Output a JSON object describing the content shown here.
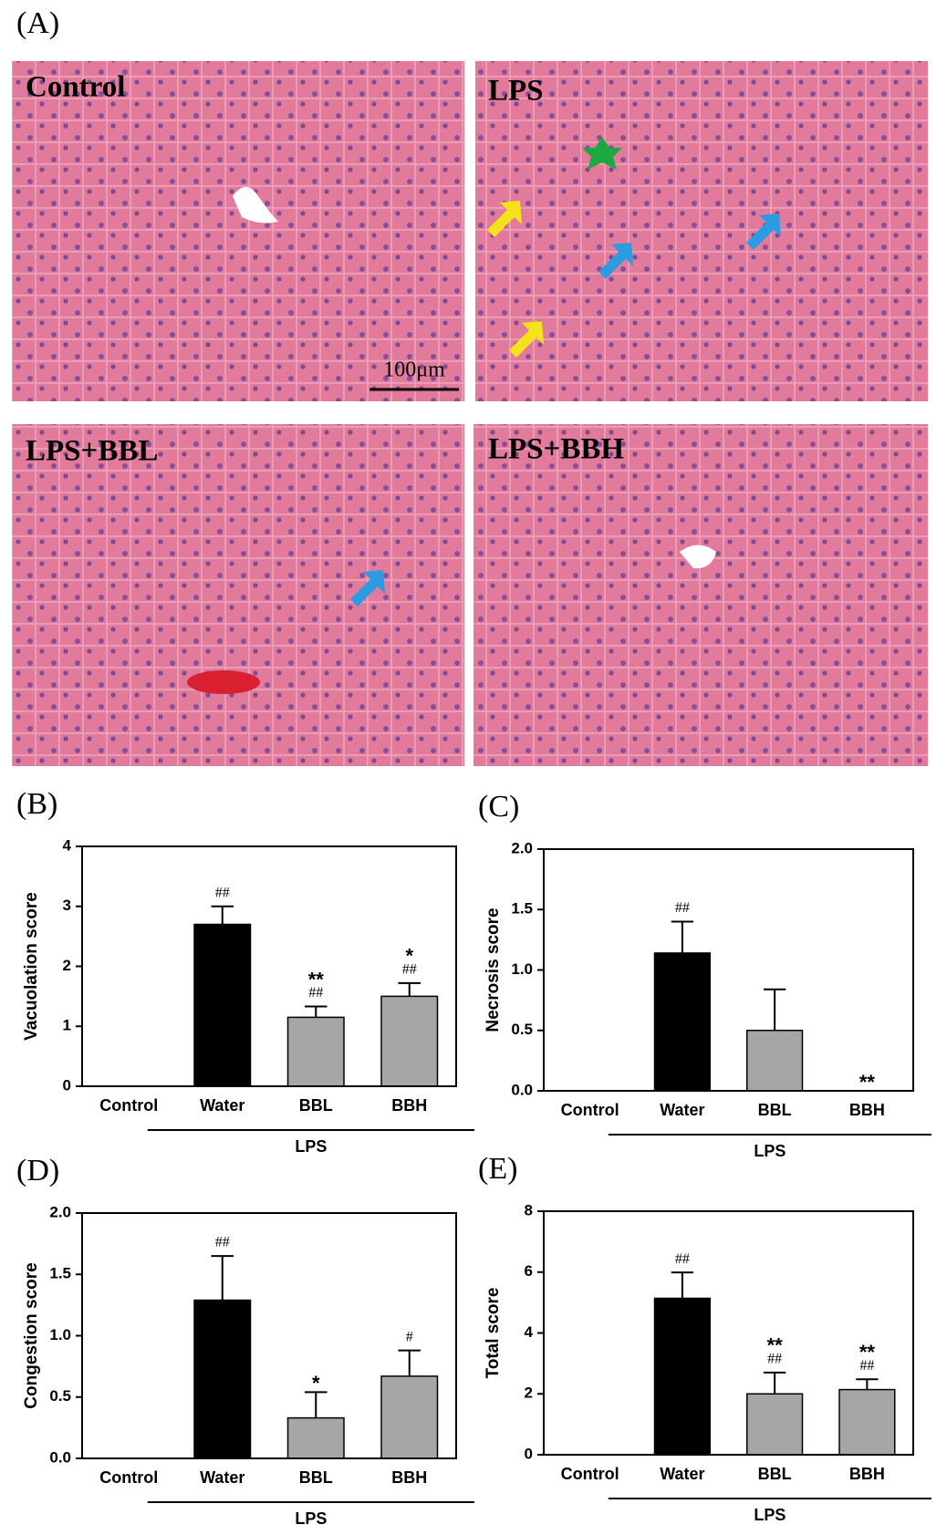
{
  "panel_a": {
    "label": "(A)",
    "images": [
      "Control",
      "LPS",
      "LPS+BBL",
      "LPS+BBH"
    ],
    "scale_bar": "100μm"
  },
  "chart_data": [
    {
      "type": "bar",
      "panel": "(B)",
      "y_label": "Vacuolation score",
      "categories": [
        "Control",
        "Water",
        "BBL",
        "BBH"
      ],
      "group_label": "LPS",
      "values": [
        0,
        2.7,
        1.15,
        1.5
      ],
      "errors": [
        null,
        0.3,
        0.18,
        0.22
      ],
      "colors": [
        "#000000",
        "#000000",
        "#a6a6a6",
        "#a6a6a6"
      ],
      "annotations": [
        [],
        [
          "##"
        ],
        [
          "##",
          "**"
        ],
        [
          "##",
          "*"
        ]
      ],
      "ylim": [
        0,
        4
      ],
      "yticks": [
        0,
        1,
        2,
        3,
        4
      ]
    },
    {
      "type": "bar",
      "panel": "(C)",
      "y_label": "Necrosis score",
      "categories": [
        "Control",
        "Water",
        "BBL",
        "BBH"
      ],
      "group_label": "LPS",
      "values": [
        0,
        1.14,
        0.5,
        0
      ],
      "errors": [
        null,
        0.26,
        0.34,
        null
      ],
      "colors": [
        "#000000",
        "#000000",
        "#a6a6a6",
        "#a6a6a6"
      ],
      "annotations": [
        [],
        [
          "##"
        ],
        [],
        [
          "**"
        ]
      ],
      "ylim": [
        0,
        2
      ],
      "yticks": [
        {
          "value": 0,
          "label": "0.0"
        },
        0.5,
        {
          "value": 1,
          "label": "1.0"
        },
        1.5,
        {
          "value": 2,
          "label": "2.0"
        }
      ]
    },
    {
      "type": "bar",
      "panel": "(D)",
      "y_label": "Congestion score",
      "categories": [
        "Control",
        "Water",
        "BBL",
        "BBH"
      ],
      "group_label": "LPS",
      "values": [
        0,
        1.29,
        0.33,
        0.67
      ],
      "errors": [
        null,
        0.36,
        0.21,
        0.21
      ],
      "colors": [
        "#000000",
        "#000000",
        "#a6a6a6",
        "#a6a6a6"
      ],
      "annotations": [
        [],
        [
          "##"
        ],
        [
          "*"
        ],
        [
          "#"
        ]
      ],
      "ylim": [
        0,
        2
      ],
      "yticks": [
        {
          "value": 0,
          "label": "0.0"
        },
        0.5,
        {
          "value": 1,
          "label": "1.0"
        },
        1.5,
        {
          "value": 2,
          "label": "2.0"
        }
      ]
    },
    {
      "type": "bar",
      "panel": "(E)",
      "y_label": "Total score",
      "categories": [
        "Control",
        "Water",
        "BBL",
        "BBH"
      ],
      "group_label": "LPS",
      "values": [
        0,
        5.14,
        2.0,
        2.14
      ],
      "errors": [
        null,
        0.85,
        0.7,
        0.34
      ],
      "colors": [
        "#000000",
        "#000000",
        "#a6a6a6",
        "#a6a6a6"
      ],
      "annotations": [
        [],
        [
          "##"
        ],
        [
          "##",
          "**"
        ],
        [
          "##",
          "**"
        ]
      ],
      "ylim": [
        0,
        8
      ],
      "yticks": [
        0,
        2,
        4,
        6,
        8
      ]
    }
  ]
}
